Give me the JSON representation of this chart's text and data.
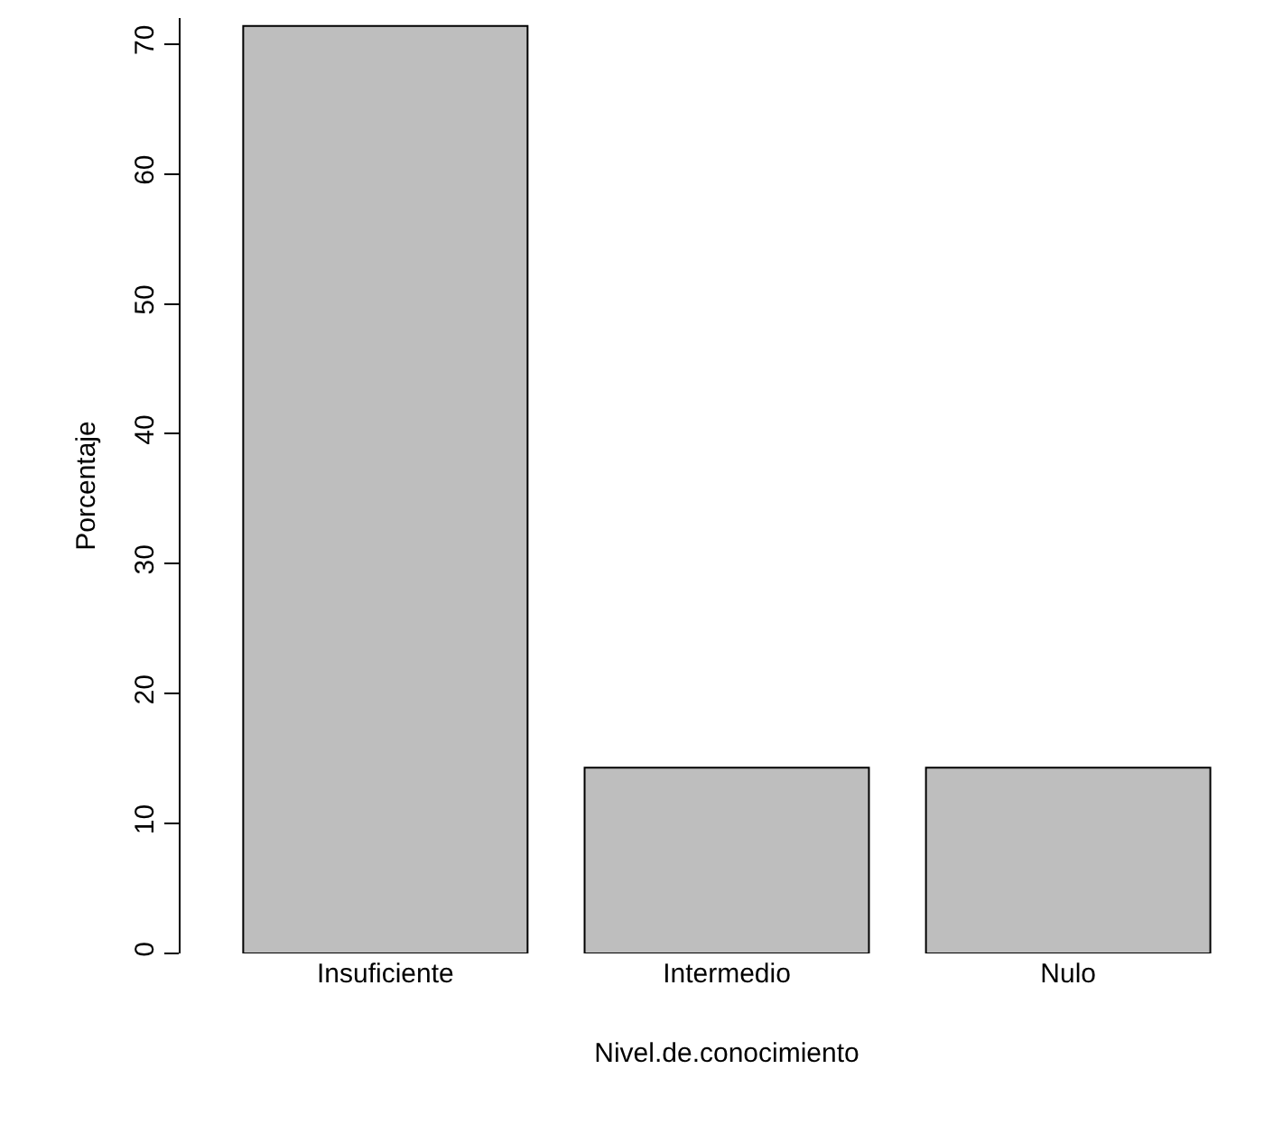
{
  "chart_data": {
    "type": "bar",
    "xlabel": "Nivel.de.conocimiento",
    "ylabel": "Porcentaje",
    "categories": [
      "Insuficiente",
      "Intermedio",
      "Nulo"
    ],
    "values": [
      71.4,
      14.3,
      14.3
    ],
    "color": "#bebebe",
    "ylim": [
      0,
      72
    ],
    "yticks": [
      0,
      10,
      20,
      30,
      40,
      50,
      60,
      70
    ],
    "grid": false,
    "legend": false
  }
}
